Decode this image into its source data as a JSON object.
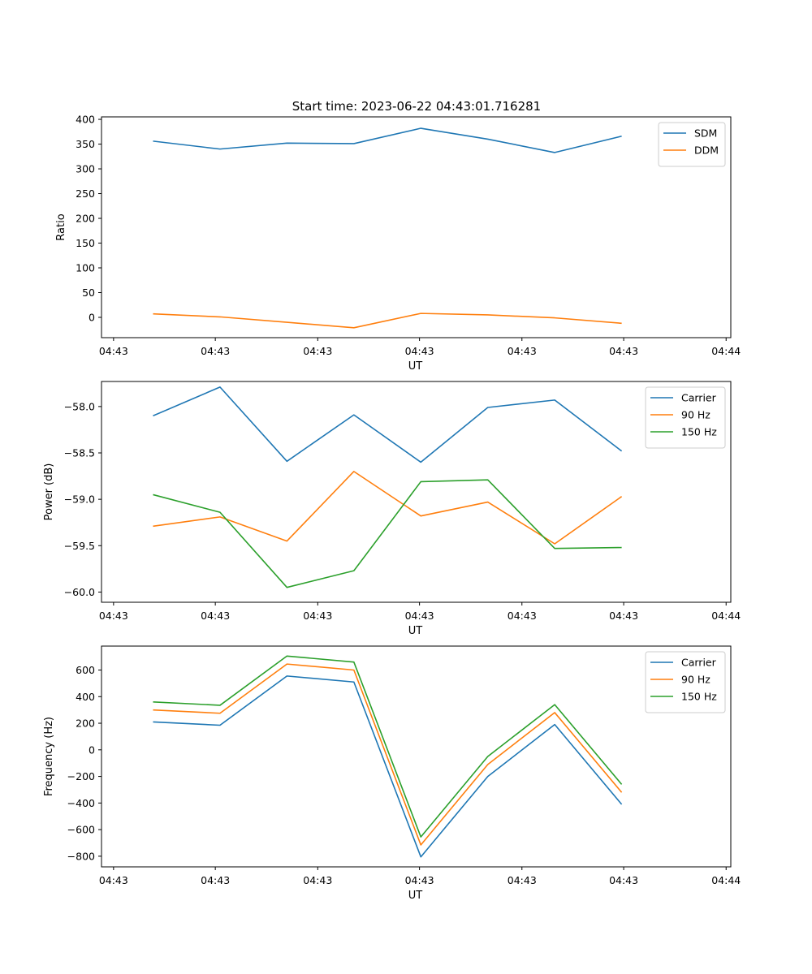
{
  "figure": {
    "title": "Start time: 2023-06-22 04:43:01.716281"
  },
  "x_tick_labels": [
    "04:43",
    "04:43",
    "04:43",
    "04:43",
    "04:43",
    "04:43",
    "04:43"
  ],
  "x_tick_last_label": "04:44",
  "chart_data": [
    {
      "type": "line",
      "title": "Start time: 2023-06-22 04:43:01.716281",
      "xlabel": "UT",
      "ylabel": "Ratio",
      "ylim": [
        -41,
        405
      ],
      "yticks": [
        0,
        50,
        100,
        150,
        200,
        250,
        300,
        350,
        400
      ],
      "ytick_labels": [
        "0",
        "50",
        "100",
        "150",
        "200",
        "250",
        "300",
        "350",
        "400"
      ],
      "grid": false,
      "legend": "top-right",
      "x": [
        1,
        2,
        3,
        4,
        5,
        6,
        7,
        8
      ],
      "series": [
        {
          "name": "SDM",
          "color": "#1f77b4",
          "values": [
            356,
            340,
            352,
            351,
            382,
            360,
            333,
            366
          ]
        },
        {
          "name": "DDM",
          "color": "#ff7f0e",
          "values": [
            7,
            1,
            -10,
            -21,
            8,
            5,
            -1,
            -12
          ]
        }
      ]
    },
    {
      "type": "line",
      "xlabel": "UT",
      "ylabel": "Power (dB)",
      "ylim": [
        -60.11,
        -57.73
      ],
      "yticks": [
        -58.0,
        -58.5,
        -59.0,
        -59.5,
        -60.0
      ],
      "ytick_labels": [
        "−58.0",
        "−58.5",
        "−59.0",
        "−59.5",
        "−60.0"
      ],
      "grid": false,
      "legend": "top-right",
      "x": [
        1,
        2,
        3,
        4,
        5,
        6,
        7,
        8
      ],
      "series": [
        {
          "name": "Carrier",
          "color": "#1f77b4",
          "values": [
            -58.1,
            -57.79,
            -58.59,
            -58.09,
            -58.6,
            -58.01,
            -57.93,
            -58.48
          ]
        },
        {
          "name": "90 Hz",
          "color": "#ff7f0e",
          "values": [
            -59.29,
            -59.19,
            -59.45,
            -58.7,
            -59.18,
            -59.03,
            -59.48,
            -58.97
          ]
        },
        {
          "name": "150 Hz",
          "color": "#2ca02c",
          "values": [
            -58.95,
            -59.14,
            -59.95,
            -59.77,
            -58.81,
            -58.79,
            -59.53,
            -59.52
          ]
        }
      ]
    },
    {
      "type": "line",
      "xlabel": "UT",
      "ylabel": "Frequency (Hz)",
      "ylim": [
        -880,
        780
      ],
      "yticks": [
        -800,
        -600,
        -400,
        -200,
        0,
        200,
        400,
        600
      ],
      "ytick_labels": [
        "−800",
        "−600",
        "−400",
        "−200",
        "0",
        "200",
        "400",
        "600"
      ],
      "grid": false,
      "legend": "top-right",
      "x": [
        1,
        2,
        3,
        4,
        5,
        6,
        7,
        8
      ],
      "series": [
        {
          "name": "Carrier",
          "color": "#1f77b4",
          "values": [
            210,
            185,
            555,
            510,
            -805,
            -200,
            190,
            -410
          ]
        },
        {
          "name": "90 Hz",
          "color": "#ff7f0e",
          "values": [
            300,
            275,
            645,
            600,
            -715,
            -110,
            280,
            -320
          ]
        },
        {
          "name": "150 Hz",
          "color": "#2ca02c",
          "values": [
            360,
            335,
            705,
            660,
            -655,
            -50,
            340,
            -260
          ]
        }
      ]
    }
  ]
}
